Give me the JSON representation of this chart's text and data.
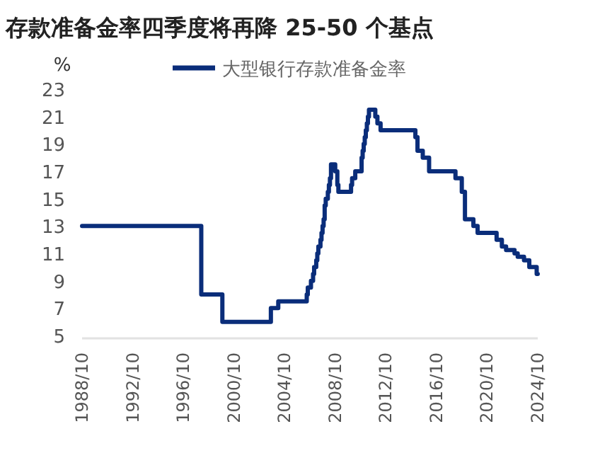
{
  "chart_data": {
    "type": "step",
    "title": "存款准备金率四季度将再降 25-50 个基点",
    "ylabel": "%",
    "x": [
      "1988-10",
      "1998-03",
      "1999-11",
      "2003-09",
      "2004-04",
      "2006-07",
      "2006-08",
      "2006-11",
      "2007-01",
      "2007-02",
      "2007-04",
      "2007-05",
      "2007-06",
      "2007-08",
      "2007-09",
      "2007-10",
      "2007-11",
      "2007-12",
      "2008-01",
      "2008-03",
      "2008-04",
      "2008-05",
      "2008-06",
      "2008-10",
      "2008-12",
      "2009-01",
      "2010-01",
      "2010-02",
      "2010-05",
      "2010-11",
      "2010-12",
      "2011-01",
      "2011-02",
      "2011-03",
      "2011-04",
      "2011-05",
      "2011-06",
      "2011-12",
      "2012-02",
      "2012-05",
      "2015-02",
      "2015-04",
      "2015-09",
      "2016-03",
      "2018-04",
      "2018-10",
      "2019-01",
      "2019-09",
      "2020-01",
      "2021-07",
      "2021-12",
      "2022-04",
      "2022-12",
      "2023-03",
      "2023-09",
      "2024-02",
      "2024-09",
      "2024-10"
    ],
    "series": [
      {
        "name": "大型银行存款准备金率",
        "color": "#0a2d7a",
        "values": [
          13,
          8,
          6,
          7,
          7.5,
          8,
          8.5,
          9,
          9.5,
          10,
          10.5,
          11,
          11.5,
          12,
          12.5,
          13,
          13.5,
          14.5,
          15,
          15.5,
          16,
          16.5,
          17.5,
          17,
          16,
          15.5,
          16,
          16.5,
          17,
          18,
          18.5,
          19,
          19.5,
          20,
          20.5,
          21,
          21.5,
          21,
          20.5,
          20,
          19.5,
          18.5,
          18,
          17,
          16.5,
          15.5,
          13.5,
          13,
          12.5,
          12,
          11.5,
          11.25,
          11,
          10.75,
          10.5,
          10,
          9.5,
          9.5
        ]
      }
    ],
    "xlim": [
      "1988-10",
      "2024-10"
    ],
    "xticks": [
      {
        "value": "1988-10",
        "label": "1988/10"
      },
      {
        "value": "1992-10",
        "label": "1992/10"
      },
      {
        "value": "1996-10",
        "label": "1996/10"
      },
      {
        "value": "2000-10",
        "label": "2000/10"
      },
      {
        "value": "2004-10",
        "label": "2004/10"
      },
      {
        "value": "2008-10",
        "label": "2008/10"
      },
      {
        "value": "2012-10",
        "label": "2012/10"
      },
      {
        "value": "2016-10",
        "label": "2016/10"
      },
      {
        "value": "2020-10",
        "label": "2020/10"
      },
      {
        "value": "2024-10",
        "label": "2024/10"
      }
    ],
    "ylim": [
      5,
      23
    ],
    "yticks": [
      5,
      7,
      9,
      11,
      13,
      15,
      17,
      19,
      21,
      23
    ],
    "legend": "top"
  }
}
